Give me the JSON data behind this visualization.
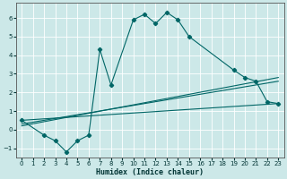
{
  "title": "",
  "xlabel": "Humidex (Indice chaleur)",
  "ylabel": "",
  "background_color": "#cce8e8",
  "grid_color": "#ffffff",
  "line_color": "#006666",
  "xlim": [
    -0.5,
    23.5
  ],
  "ylim": [
    -1.5,
    6.8
  ],
  "xticks": [
    0,
    1,
    2,
    3,
    4,
    5,
    6,
    7,
    8,
    9,
    10,
    11,
    12,
    13,
    14,
    15,
    16,
    17,
    18,
    19,
    20,
    21,
    22,
    23
  ],
  "yticks": [
    -1,
    0,
    1,
    2,
    3,
    4,
    5,
    6
  ],
  "series1_x": [
    0,
    2,
    3,
    4,
    5,
    6,
    7,
    8,
    10,
    11,
    12,
    13,
    14,
    15,
    19,
    20,
    21,
    22,
    23
  ],
  "series1_y": [
    0.5,
    -0.3,
    -0.6,
    -1.2,
    -0.6,
    -0.3,
    4.3,
    2.4,
    5.9,
    6.2,
    5.7,
    6.3,
    5.9,
    5.0,
    3.2,
    2.8,
    2.6,
    1.5,
    1.4
  ],
  "series2_x": [
    0,
    23
  ],
  "series2_y": [
    0.5,
    1.4
  ],
  "series3_x": [
    0,
    23
  ],
  "series3_y": [
    0.3,
    2.6
  ],
  "series4_x": [
    0,
    23
  ],
  "series4_y": [
    0.2,
    2.8
  ]
}
